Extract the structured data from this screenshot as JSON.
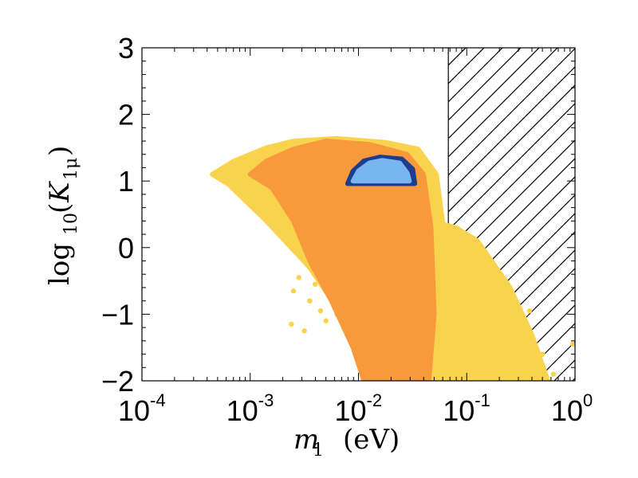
{
  "chart_data": {
    "type": "scatter",
    "title": "",
    "xlabel": {
      "base": "m",
      "sub": "1",
      "unit": "(eV)"
    },
    "ylabel": {
      "pre": "log",
      "pre_sub": "10",
      "open": "(",
      "var": "K",
      "var_sub": "1μ",
      "close": ")"
    },
    "x_scale": "log",
    "xlim": [
      0.0001,
      1
    ],
    "ylim": [
      -2,
      3
    ],
    "x_ticks": [
      {
        "base": "10",
        "exp": "-4",
        "value": -4
      },
      {
        "base": "10",
        "exp": "-3",
        "value": -3
      },
      {
        "base": "10",
        "exp": "-2",
        "value": -2
      },
      {
        "base": "10",
        "exp": "-1",
        "value": -1
      },
      {
        "base": "10",
        "exp": "0",
        "value": 0
      }
    ],
    "y_ticks": [
      {
        "label": "3",
        "value": 3
      },
      {
        "label": "2",
        "value": 2
      },
      {
        "label": "1",
        "value": 1
      },
      {
        "label": "0",
        "value": 0
      },
      {
        "label": "−1",
        "value": -1
      },
      {
        "label": "−2",
        "value": -2
      }
    ],
    "excluded_region": {
      "x_min_log10": -1.17,
      "x_max_log10": 0,
      "pattern": "hatched"
    },
    "series": [
      {
        "name": "yellow-region",
        "color": "#f9d34e",
        "outline_log10m_K": [
          [
            -3.35,
            1.1
          ],
          [
            -3.15,
            1.3
          ],
          [
            -2.85,
            1.5
          ],
          [
            -2.6,
            1.6
          ],
          [
            -2.2,
            1.64
          ],
          [
            -1.75,
            1.58
          ],
          [
            -1.45,
            1.48
          ],
          [
            -1.28,
            1.1
          ],
          [
            -1.22,
            0.35
          ],
          [
            -1.1,
            0.3
          ],
          [
            -0.9,
            0.1
          ],
          [
            -0.6,
            -0.6
          ],
          [
            -0.4,
            -1.3
          ],
          [
            -0.25,
            -2.0
          ],
          [
            -1.95,
            -2.0
          ],
          [
            -2.0,
            -1.5
          ],
          [
            -2.2,
            -0.9
          ],
          [
            -2.45,
            -0.3
          ],
          [
            -2.85,
            0.4
          ],
          [
            -3.2,
            0.95
          ]
        ],
        "scatter_points_log10m_K": [
          [
            -2.55,
            -0.45
          ],
          [
            -2.6,
            -0.65
          ],
          [
            -2.45,
            -0.8
          ],
          [
            -2.35,
            -0.95
          ],
          [
            -2.5,
            -1.25
          ],
          [
            -2.62,
            -1.15
          ],
          [
            -2.3,
            -1.1
          ],
          [
            -2.4,
            -0.55
          ],
          [
            -2.2,
            -1.0
          ],
          [
            -0.6,
            -1.1
          ],
          [
            -0.48,
            -1.5
          ],
          [
            -0.35,
            -1.75
          ],
          [
            -0.3,
            -1.6
          ],
          [
            -0.02,
            -1.45
          ],
          [
            -0.7,
            -0.55
          ],
          [
            -0.42,
            -0.95
          ],
          [
            -0.2,
            -1.9
          ]
        ]
      },
      {
        "name": "orange-region",
        "color": "#f89a3c",
        "outline_log10m_K": [
          [
            -3.0,
            1.1
          ],
          [
            -2.85,
            1.3
          ],
          [
            -2.6,
            1.48
          ],
          [
            -2.3,
            1.6
          ],
          [
            -1.9,
            1.55
          ],
          [
            -1.55,
            1.4
          ],
          [
            -1.4,
            1.1
          ],
          [
            -1.33,
            0.3
          ],
          [
            -1.3,
            -1.0
          ],
          [
            -1.35,
            -2.0
          ],
          [
            -1.95,
            -2.0
          ],
          [
            -2.05,
            -1.5
          ],
          [
            -2.25,
            -0.8
          ],
          [
            -2.45,
            -0.2
          ],
          [
            -2.6,
            0.4
          ],
          [
            -2.8,
            0.9
          ]
        ],
        "scatter_points_log10m_K": []
      },
      {
        "name": "dark-blue-region",
        "color": "#1e3d8f",
        "outline_log10m_K": [
          [
            -2.1,
            0.96
          ],
          [
            -2.05,
            1.15
          ],
          [
            -1.95,
            1.3
          ],
          [
            -1.8,
            1.36
          ],
          [
            -1.6,
            1.33
          ],
          [
            -1.5,
            1.18
          ],
          [
            -1.48,
            0.96
          ]
        ],
        "scatter_points_log10m_K": []
      },
      {
        "name": "light-blue-region",
        "color": "#79b6ef",
        "outline_log10m_K": [
          [
            -2.05,
            1.0
          ],
          [
            -2.0,
            1.15
          ],
          [
            -1.9,
            1.27
          ],
          [
            -1.78,
            1.31
          ],
          [
            -1.62,
            1.27
          ],
          [
            -1.55,
            1.12
          ],
          [
            -1.53,
            1.0
          ]
        ],
        "scatter_points_log10m_K": []
      }
    ]
  }
}
